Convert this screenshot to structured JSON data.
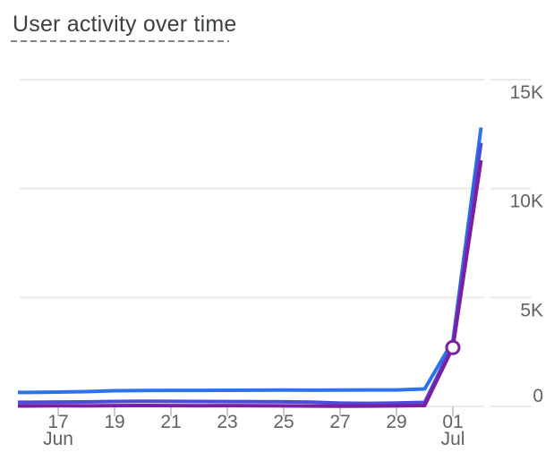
{
  "title": "User activity over time",
  "colors": {
    "background": "#FFFFFF",
    "title_text": "#3C4043",
    "title_underline": "#80868B",
    "grid_line": "#EAEAEA",
    "axis_tick": "#C9CCCF",
    "axis_label": "#5F6368",
    "marker_fill": "#FFFFFF"
  },
  "chart_data": {
    "type": "line",
    "title": "User activity over time",
    "xlabel": "",
    "ylabel": "",
    "ylim": [
      0,
      15000
    ],
    "grid": "horizontal",
    "legend_position": "none",
    "x": [
      "Jun 16",
      "Jun 17",
      "Jun 18",
      "Jun 19",
      "Jun 20",
      "Jun 21",
      "Jun 22",
      "Jun 23",
      "Jun 24",
      "Jun 25",
      "Jun 26",
      "Jun 27",
      "Jun 28",
      "Jun 29",
      "Jun 30",
      "Jul 1",
      "Jul 2"
    ],
    "y_ticks": [
      {
        "label": "0",
        "value": 0
      },
      {
        "label": "5K",
        "value": 5000
      },
      {
        "label": "10K",
        "value": 10000
      },
      {
        "label": "15K",
        "value": 15000
      }
    ],
    "x_ticks": [
      {
        "label": "17",
        "month": "Jun",
        "category": "Jun 17"
      },
      {
        "label": "19",
        "month": "",
        "category": "Jun 19"
      },
      {
        "label": "21",
        "month": "",
        "category": "Jun 21"
      },
      {
        "label": "23",
        "month": "",
        "category": "Jun 23"
      },
      {
        "label": "25",
        "month": "",
        "category": "Jun 25"
      },
      {
        "label": "27",
        "month": "",
        "category": "Jun 27"
      },
      {
        "label": "29",
        "month": "",
        "category": "Jun 29"
      },
      {
        "label": "01",
        "month": "Jul",
        "category": "Jul 1"
      }
    ],
    "series": [
      {
        "name": "blue-line",
        "color": "#2A74E8",
        "values": [
          640,
          660,
          680,
          720,
          730,
          735,
          735,
          740,
          745,
          750,
          745,
          750,
          755,
          755,
          800,
          3000,
          12800
        ]
      },
      {
        "name": "indigo-line",
        "color": "#4E4CD6",
        "values": [
          190,
          200,
          205,
          225,
          235,
          230,
          225,
          220,
          215,
          210,
          195,
          150,
          140,
          155,
          185,
          2850,
          12100
        ]
      },
      {
        "name": "purple-line",
        "color": "#7B1FA2",
        "values": [
          20,
          30,
          25,
          35,
          40,
          35,
          30,
          35,
          30,
          25,
          15,
          10,
          15,
          25,
          40,
          2700,
          11300
        ],
        "marker": {
          "category": "Jul 1",
          "value": 2700,
          "style": "open-circle"
        }
      }
    ]
  }
}
